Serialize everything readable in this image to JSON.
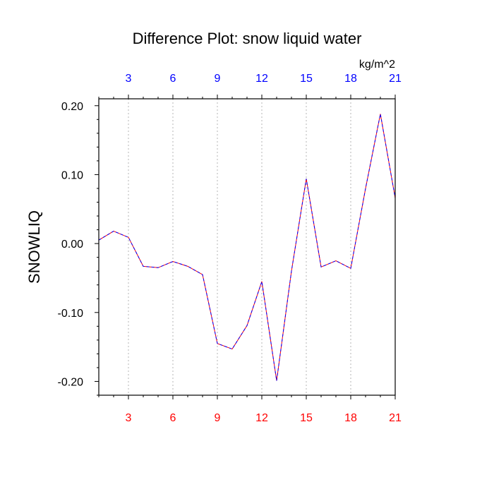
{
  "chart_data": {
    "type": "line",
    "title": "Difference Plot: snow liquid water",
    "units_label": "kg/m^2",
    "ylabel": "SNOWLIQ",
    "xlabel": "",
    "xlim": [
      1,
      21
    ],
    "ylim": [
      -0.22,
      0.21
    ],
    "x_ticks": [
      3,
      6,
      9,
      12,
      15,
      18,
      21
    ],
    "x_tick_labels": [
      "3",
      "6",
      "9",
      "12",
      "15",
      "18",
      "21"
    ],
    "y_ticks": [
      -0.2,
      -0.1,
      0.0,
      0.1,
      0.2
    ],
    "y_tick_labels": [
      "-0.20",
      "-0.10",
      "0.00",
      "0.10",
      "0.20"
    ],
    "grid": "vertical dotted at x ticks",
    "colors": {
      "top_tick_labels": "#0000ff",
      "bottom_tick_labels": "#ff0000",
      "series_red": "#ff0000",
      "series_blue": "#0000ff",
      "grid": "#b4b4b4",
      "frame": "#000000"
    },
    "x": [
      1,
      2,
      3,
      4,
      5,
      6,
      7,
      8,
      9,
      10,
      11,
      12,
      13,
      14,
      15,
      16,
      17,
      18,
      19,
      20,
      21
    ],
    "series": [
      {
        "values": [
          0.005,
          0.018,
          0.009,
          -0.033,
          -0.035,
          -0.026,
          -0.033,
          -0.045,
          -0.145,
          -0.153,
          -0.119,
          -0.055,
          -0.199,
          -0.04,
          0.094,
          -0.034,
          -0.025,
          -0.036,
          0.08,
          0.188,
          0.066
        ]
      },
      {
        "values": [
          0.005,
          0.018,
          0.009,
          -0.033,
          -0.035,
          -0.026,
          -0.033,
          -0.045,
          -0.145,
          -0.153,
          -0.119,
          -0.055,
          -0.199,
          -0.04,
          0.094,
          -0.034,
          -0.025,
          -0.036,
          0.08,
          0.188,
          0.066
        ]
      }
    ]
  }
}
